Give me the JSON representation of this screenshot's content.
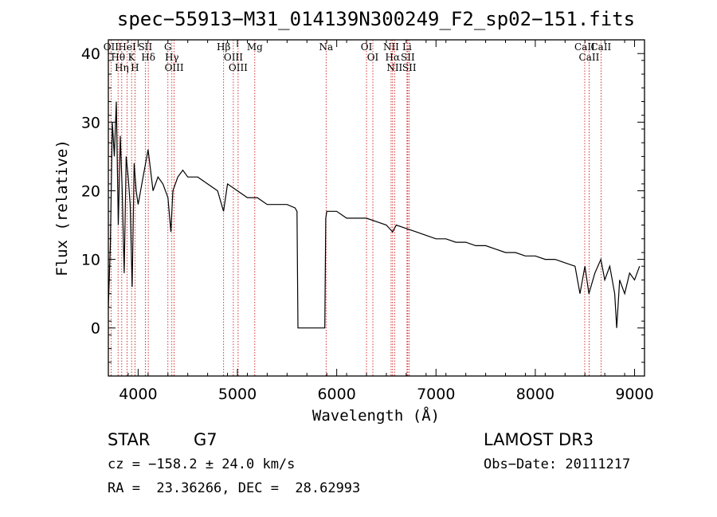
{
  "chart_data": {
    "type": "line",
    "title": "spec−55913−M31_014139N300249_F2_sp02−151.fits",
    "xlabel": "Wavelength (Å)",
    "ylabel": "Flux (relative)",
    "xlim": [
      3700,
      9100
    ],
    "ylim": [
      -7,
      42
    ],
    "xticks": [
      4000,
      5000,
      6000,
      7000,
      8000,
      9000
    ],
    "xtick_labels": [
      "4000",
      "5000",
      "6000",
      "7000",
      "8000",
      "9000"
    ],
    "yticks": [
      0,
      10,
      20,
      30,
      40
    ],
    "ytick_labels": [
      "0",
      "10",
      "20",
      "30",
      "40"
    ],
    "grid": false,
    "series": [
      {
        "name": "flux",
        "x": [
          3700,
          3720,
          3740,
          3760,
          3780,
          3800,
          3820,
          3840,
          3860,
          3880,
          3900,
          3920,
          3940,
          3960,
          3980,
          4000,
          4050,
          4100,
          4150,
          4200,
          4250,
          4300,
          4330,
          4350,
          4400,
          4450,
          4500,
          4600,
          4700,
          4800,
          4860,
          4900,
          5000,
          5100,
          5200,
          5300,
          5400,
          5500,
          5580,
          5600,
          5610,
          5620,
          5700,
          5800,
          5880,
          5890,
          5900,
          6000,
          6100,
          6200,
          6300,
          6400,
          6500,
          6563,
          6600,
          6700,
          6800,
          6900,
          7000,
          7100,
          7200,
          7300,
          7400,
          7500,
          7600,
          7700,
          7800,
          7900,
          8000,
          8100,
          8200,
          8300,
          8400,
          8450,
          8500,
          8540,
          8600,
          8660,
          8700,
          8750,
          8800,
          8820,
          8850,
          8900,
          8950,
          9000,
          9050
        ],
        "y": [
          3,
          12,
          30,
          25,
          33,
          15,
          28,
          20,
          8,
          25,
          22,
          18,
          6,
          24,
          20,
          18,
          22,
          26,
          20,
          22,
          21,
          19,
          14,
          20,
          22,
          23,
          22,
          22,
          21,
          20,
          17,
          21,
          20,
          19,
          19,
          18,
          18,
          18,
          17.5,
          17,
          0,
          0,
          0,
          0,
          0,
          16,
          17,
          17,
          16,
          16,
          16,
          15.5,
          15,
          14,
          15,
          14.5,
          14,
          13.5,
          13,
          13,
          12.5,
          12.5,
          12,
          12,
          11.5,
          11,
          11,
          10.5,
          10.5,
          10,
          10,
          9.5,
          9,
          5,
          9,
          5,
          8,
          10,
          7,
          9,
          5,
          0,
          7,
          5,
          8,
          7,
          9
        ]
      }
    ],
    "line_markers": [
      {
        "name": "OII",
        "wl": 3727
      },
      {
        "name": "Hθ",
        "wl": 3798
      },
      {
        "name": "Hη",
        "wl": 3835
      },
      {
        "name": "HeI",
        "wl": 3889
      },
      {
        "name": "K",
        "wl": 3934
      },
      {
        "name": "H",
        "wl": 3968
      },
      {
        "name": "SII",
        "wl": 4072
      },
      {
        "name": "Hδ",
        "wl": 4102
      },
      {
        "name": "G",
        "wl": 4300
      },
      {
        "name": "Hγ",
        "wl": 4340
      },
      {
        "name": "OIII",
        "wl": 4363
      },
      {
        "name": "Hβ",
        "wl": 4861
      },
      {
        "name": "OIII",
        "wl": 4959
      },
      {
        "name": "OIII",
        "wl": 5007
      },
      {
        "name": "Mg",
        "wl": 5175
      },
      {
        "name": "Na",
        "wl": 5893
      },
      {
        "name": "OI",
        "wl": 6300
      },
      {
        "name": "OI",
        "wl": 6364
      },
      {
        "name": "NII",
        "wl": 6548
      },
      {
        "name": "Hα",
        "wl": 6563
      },
      {
        "name": "NII",
        "wl": 6583
      },
      {
        "name": "Li",
        "wl": 6708
      },
      {
        "name": "SII",
        "wl": 6716
      },
      {
        "name": "SII",
        "wl": 6731
      },
      {
        "name": "CaII",
        "wl": 8498
      },
      {
        "name": "CaII",
        "wl": 8542
      },
      {
        "name": "CaII",
        "wl": 8662
      }
    ]
  },
  "info": {
    "object_class": "STAR",
    "subclass": "G7",
    "survey": "LAMOST DR3",
    "cz": "cz = −158.2 ± 24.0 km/s",
    "obs_date": "Obs−Date: 20111217",
    "coords": "RA =  23.36266, DEC =  28.62993"
  },
  "colors": {
    "spectrum": "#000000",
    "line_marker": "#cc0000",
    "axes": "#000000"
  }
}
